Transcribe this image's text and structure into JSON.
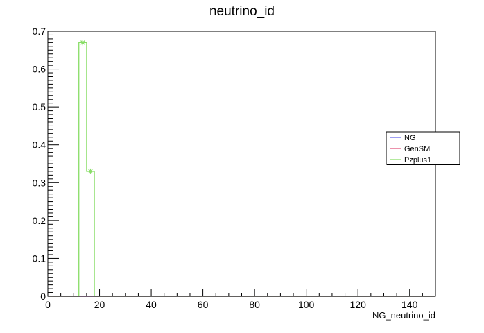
{
  "chart_data": {
    "type": "line",
    "title": "neutrino_id",
    "xlabel": "NG_neutrino_id",
    "ylabel": "",
    "xlim": [
      0,
      150
    ],
    "ylim": [
      0,
      0.7
    ],
    "x_ticks": [
      0,
      20,
      40,
      60,
      80,
      100,
      120,
      140
    ],
    "x_tick_labels": [
      "0",
      "20",
      "40",
      "60",
      "80",
      "100",
      "120",
      "140"
    ],
    "y_ticks": [
      0,
      0.1,
      0.2,
      0.3,
      0.4,
      0.5,
      0.6,
      0.7
    ],
    "y_tick_labels": [
      "0",
      "0.1",
      "0.2",
      "0.3",
      "0.4",
      "0.5",
      "0.6",
      "0.7"
    ],
    "grid": false,
    "legend_position": "right",
    "bin_edges": [
      0,
      12,
      15,
      18,
      150
    ],
    "series": [
      {
        "name": "NG",
        "color": "#6666ee",
        "values": [
          0,
          0,
          0,
          0
        ]
      },
      {
        "name": "GenSM",
        "color": "#e0507a",
        "values": [
          0,
          0,
          0,
          0
        ]
      },
      {
        "name": "Pzplus1",
        "color": "#88dd66",
        "values": [
          0,
          0.67,
          0.33,
          0
        ],
        "markers": [
          {
            "x": 13.5,
            "y": 0.67
          },
          {
            "x": 16.5,
            "y": 0.33
          }
        ]
      }
    ]
  }
}
